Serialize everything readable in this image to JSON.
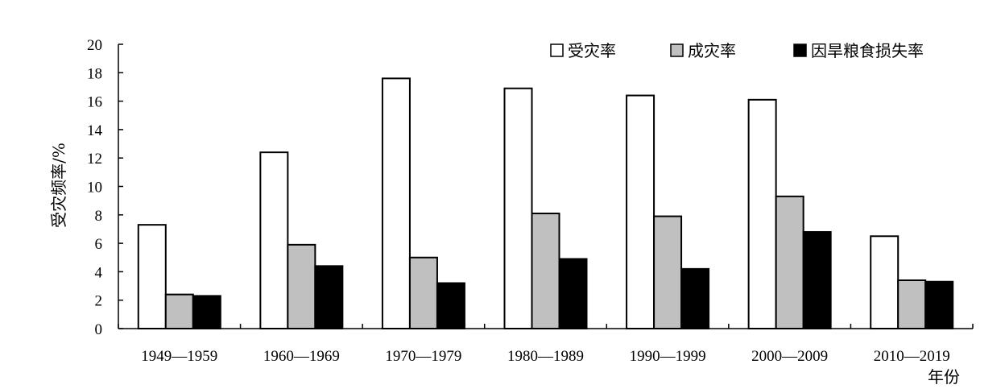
{
  "chart_data": {
    "type": "bar",
    "ylabel": "受灾频率/%",
    "xlabel": "年份",
    "ylim": [
      0,
      20
    ],
    "yticks": [
      0,
      2,
      4,
      6,
      8,
      10,
      12,
      14,
      16,
      18,
      20
    ],
    "categories": [
      "1949—1959",
      "1960—1969",
      "1970—1979",
      "1980—1989",
      "1990—1999",
      "2000—2009",
      "2010—2019"
    ],
    "series": [
      {
        "name": "受灾率",
        "color": "#ffffff",
        "values": [
          7.3,
          12.4,
          17.6,
          16.9,
          16.4,
          16.1,
          6.5
        ]
      },
      {
        "name": "成灾率",
        "color": "#c0c0c0",
        "values": [
          2.4,
          5.9,
          5.0,
          8.1,
          7.9,
          9.3,
          3.4
        ]
      },
      {
        "name": "因旱粮食损失率",
        "color": "#000000",
        "values": [
          2.3,
          4.4,
          3.2,
          4.9,
          4.2,
          6.8,
          3.3
        ]
      }
    ],
    "legend_position": "top-right",
    "grid": false
  }
}
